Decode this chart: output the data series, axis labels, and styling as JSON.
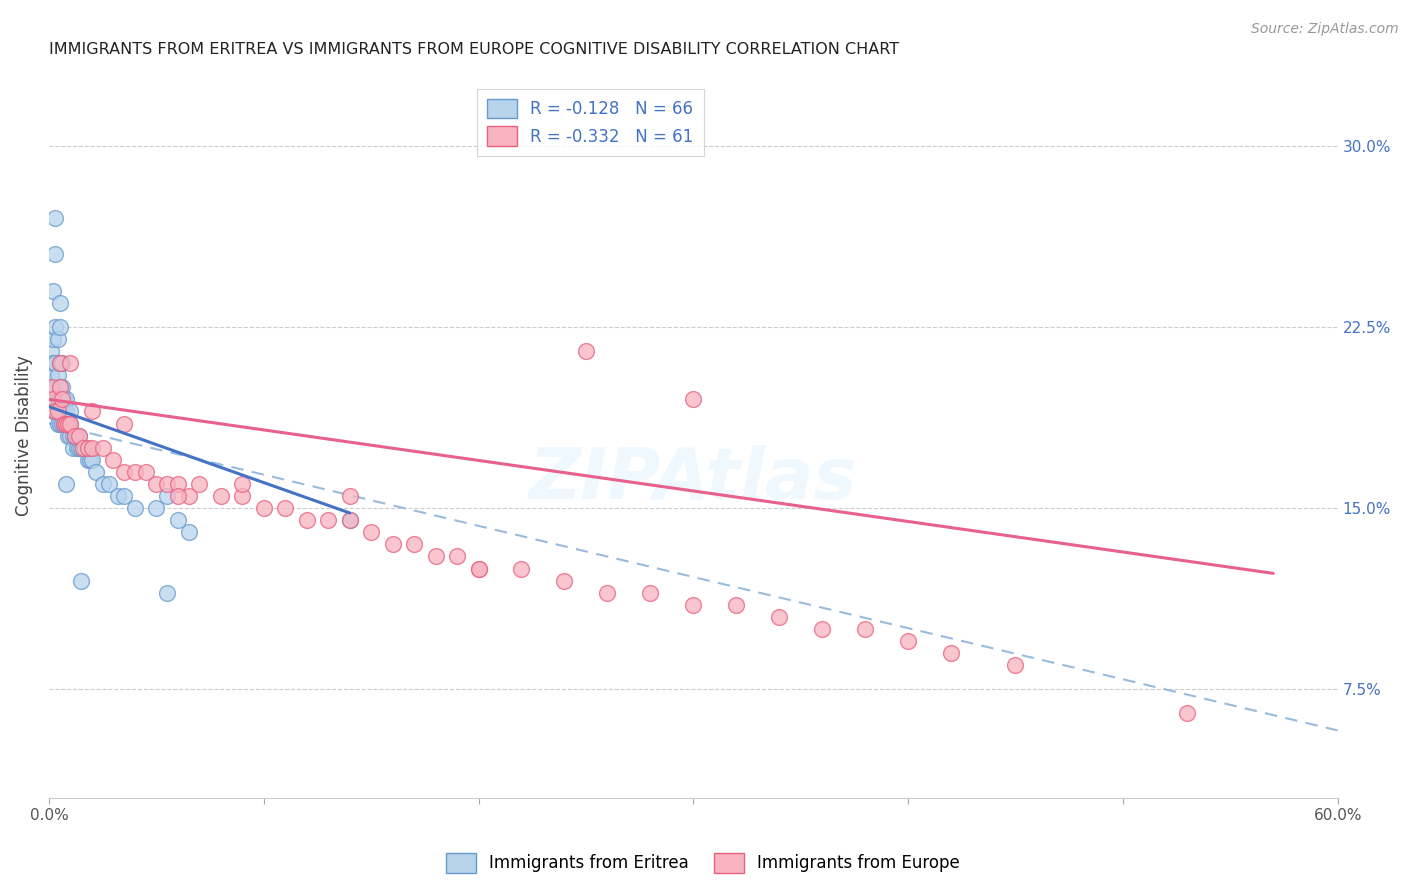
{
  "title": "IMMIGRANTS FROM ERITREA VS IMMIGRANTS FROM EUROPE COGNITIVE DISABILITY CORRELATION CHART",
  "source": "Source: ZipAtlas.com",
  "ylabel": "Cognitive Disability",
  "x_tick_positions": [
    0.0,
    0.1,
    0.2,
    0.3,
    0.4,
    0.5,
    0.6
  ],
  "x_tick_labels": [
    "0.0%",
    "",
    "",
    "",
    "",
    "",
    "60.0%"
  ],
  "y_tick_values": [
    0.075,
    0.15,
    0.225,
    0.3
  ],
  "y_tick_labels": [
    "7.5%",
    "15.0%",
    "22.5%",
    "30.0%"
  ],
  "xlim": [
    0.0,
    0.6
  ],
  "ylim": [
    0.03,
    0.33
  ],
  "R_eritrea": -0.128,
  "N_eritrea": 66,
  "R_europe": -0.332,
  "N_europe": 61,
  "color_eritrea_fill": "#b8d4ec",
  "color_eritrea_edge": "#6699cc",
  "color_europe_fill": "#f8b4c0",
  "color_europe_edge": "#e86080",
  "line_eritrea_color": "#4472c4",
  "line_europe_color": "#e8608c",
  "line_dashed_color": "#99bbdd",
  "eritrea_x": [
    0.001,
    0.001,
    0.001,
    0.002,
    0.002,
    0.002,
    0.002,
    0.002,
    0.003,
    0.003,
    0.003,
    0.003,
    0.003,
    0.004,
    0.004,
    0.004,
    0.004,
    0.005,
    0.005,
    0.005,
    0.005,
    0.005,
    0.006,
    0.006,
    0.006,
    0.006,
    0.007,
    0.007,
    0.007,
    0.008,
    0.008,
    0.008,
    0.009,
    0.009,
    0.01,
    0.01,
    0.01,
    0.011,
    0.011,
    0.012,
    0.013,
    0.013,
    0.014,
    0.014,
    0.015,
    0.016,
    0.017,
    0.018,
    0.019,
    0.02,
    0.022,
    0.025,
    0.028,
    0.032,
    0.035,
    0.04,
    0.05,
    0.055,
    0.06,
    0.065,
    0.003,
    0.005,
    0.008,
    0.015,
    0.055,
    0.14
  ],
  "eritrea_y": [
    0.195,
    0.205,
    0.215,
    0.19,
    0.2,
    0.21,
    0.22,
    0.24,
    0.19,
    0.2,
    0.21,
    0.225,
    0.255,
    0.185,
    0.195,
    0.205,
    0.22,
    0.185,
    0.195,
    0.2,
    0.21,
    0.225,
    0.185,
    0.19,
    0.2,
    0.21,
    0.185,
    0.19,
    0.195,
    0.185,
    0.19,
    0.195,
    0.18,
    0.185,
    0.18,
    0.185,
    0.19,
    0.175,
    0.18,
    0.18,
    0.175,
    0.18,
    0.175,
    0.18,
    0.175,
    0.175,
    0.175,
    0.17,
    0.17,
    0.17,
    0.165,
    0.16,
    0.16,
    0.155,
    0.155,
    0.15,
    0.15,
    0.155,
    0.145,
    0.14,
    0.27,
    0.235,
    0.16,
    0.12,
    0.115,
    0.145
  ],
  "europe_x": [
    0.001,
    0.002,
    0.003,
    0.004,
    0.005,
    0.006,
    0.007,
    0.008,
    0.009,
    0.01,
    0.012,
    0.014,
    0.016,
    0.018,
    0.02,
    0.025,
    0.03,
    0.035,
    0.04,
    0.045,
    0.05,
    0.055,
    0.06,
    0.065,
    0.07,
    0.08,
    0.09,
    0.1,
    0.11,
    0.12,
    0.13,
    0.14,
    0.15,
    0.16,
    0.17,
    0.18,
    0.19,
    0.2,
    0.22,
    0.24,
    0.26,
    0.28,
    0.3,
    0.32,
    0.34,
    0.36,
    0.38,
    0.4,
    0.42,
    0.45,
    0.005,
    0.01,
    0.02,
    0.035,
    0.06,
    0.09,
    0.14,
    0.2,
    0.3,
    0.53,
    0.25
  ],
  "europe_y": [
    0.2,
    0.195,
    0.19,
    0.19,
    0.2,
    0.195,
    0.185,
    0.185,
    0.185,
    0.185,
    0.18,
    0.18,
    0.175,
    0.175,
    0.175,
    0.175,
    0.17,
    0.165,
    0.165,
    0.165,
    0.16,
    0.16,
    0.16,
    0.155,
    0.16,
    0.155,
    0.155,
    0.15,
    0.15,
    0.145,
    0.145,
    0.145,
    0.14,
    0.135,
    0.135,
    0.13,
    0.13,
    0.125,
    0.125,
    0.12,
    0.115,
    0.115,
    0.11,
    0.11,
    0.105,
    0.1,
    0.1,
    0.095,
    0.09,
    0.085,
    0.21,
    0.21,
    0.19,
    0.185,
    0.155,
    0.16,
    0.155,
    0.125,
    0.195,
    0.065,
    0.215
  ],
  "blue_line_x": [
    0.0,
    0.14
  ],
  "blue_line_y": [
    0.192,
    0.148
  ],
  "pink_line_x": [
    0.0,
    0.57
  ],
  "pink_line_y": [
    0.195,
    0.123
  ],
  "dash_line_x": [
    0.0,
    0.6
  ],
  "dash_line_y": [
    0.185,
    0.058
  ]
}
